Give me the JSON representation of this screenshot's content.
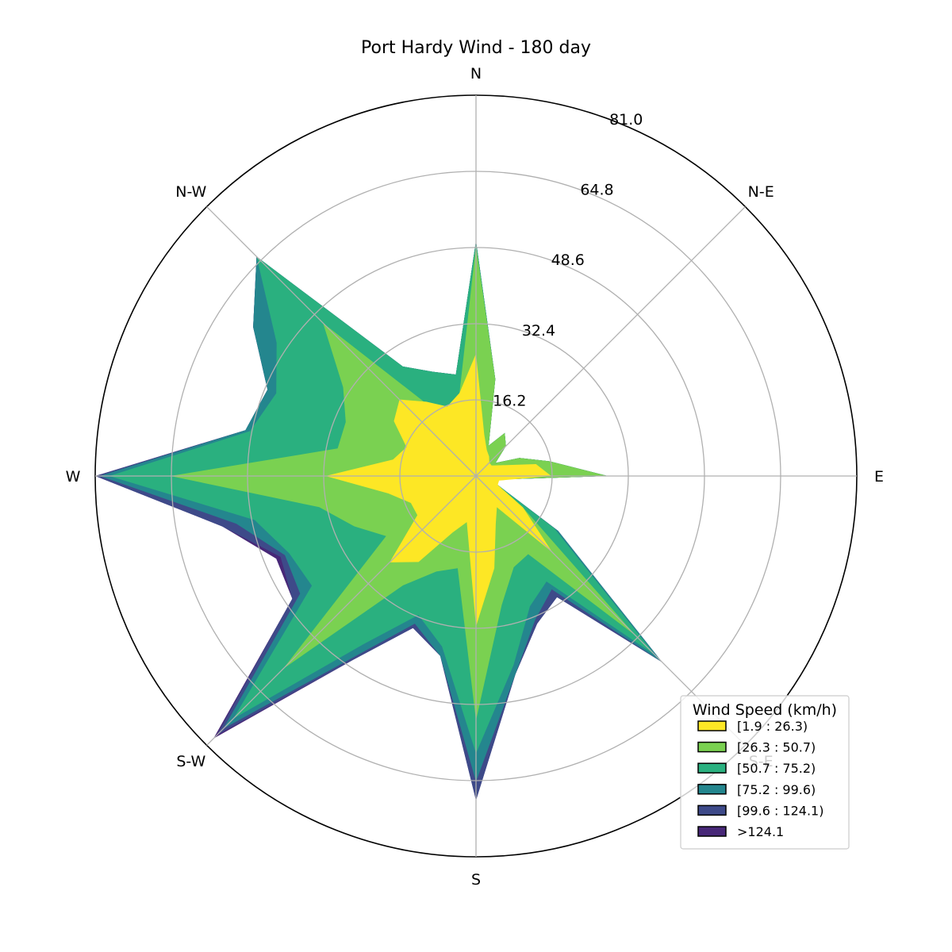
{
  "chart_data": {
    "type": "area",
    "subtype": "windrose",
    "title": "Port Hardy Wind - 180 day",
    "directions": [
      "E",
      "N-E",
      "N",
      "N-W",
      "W",
      "S-W",
      "S",
      "S-E"
    ],
    "radial_ticks": [
      "16.2",
      "32.4",
      "48.6",
      "64.8",
      "81.0"
    ],
    "radial_tick_values": [
      16.2,
      32.4,
      48.6,
      64.8,
      81.0
    ],
    "rmax": 81.0,
    "angles_deg": [
      0,
      11.25,
      22.5,
      33.75,
      45,
      56.25,
      67.5,
      78.75,
      90,
      101.25,
      112.5,
      123.75,
      135,
      146.25,
      157.5,
      168.75,
      180,
      191.25,
      202.5,
      213.75,
      225,
      236.25,
      247.5,
      258.75,
      270,
      281.25,
      292.5,
      303.75,
      315,
      326.25,
      337.5,
      348.75
    ],
    "legend": {
      "title": "Wind Speed (km/h)",
      "placement": "lower-right",
      "entries": [
        "[1.9 : 26.3)",
        "[26.3 : 50.7)",
        "[50.7 : 75.2)",
        "[75.2 : 99.6)",
        "[99.6 : 124.1)",
        ">124.1"
      ]
    },
    "series": [
      {
        "name": "[1.9 : 26.3)",
        "color": "#fde725",
        "values": [
          16,
          13,
          6,
          4,
          4,
          5,
          6,
          9,
          26,
          18,
          16,
          19,
          23,
          21,
          16,
          18,
          32,
          19,
          15,
          15,
          26,
          22,
          13,
          10,
          32,
          20,
          11,
          8,
          23,
          12,
          5,
          5
        ]
      },
      {
        "name": "[26.3 : 50.7)",
        "color": "#7ad151",
        "values": [
          28,
          16,
          10,
          5,
          9,
          11,
          7,
          21,
          49,
          18,
          12,
          18,
          46,
          34,
          30,
          30,
          65,
          34,
          28,
          23,
          58,
          28,
          22,
          20,
          52,
          28,
          21,
          20,
          48,
          12,
          5,
          4
        ]
      },
      {
        "name": "[50.7 : 75.2)",
        "color": "#2ab07f",
        "values": [
          28,
          16,
          10,
          5,
          9,
          11,
          7,
          21,
          50,
          22,
          24,
          28,
          66,
          51,
          46,
          49,
          78,
          48,
          43,
          42,
          73,
          43,
          32,
          37,
          59,
          41,
          30,
          27,
          54,
          20,
          5,
          4
        ]
      },
      {
        "name": "[75.2 : 99.6)",
        "color": "#24868e",
        "values": [
          28,
          16,
          10,
          5,
          9,
          11,
          7,
          21,
          50,
          22,
          24,
          28,
          66,
          57,
          48,
          50,
          80,
          52,
          44,
          45,
          76,
          46,
          34,
          39,
          65,
          43,
          33,
          29,
          56,
          21,
          5,
          4
        ]
      },
      {
        "name": "[99.6 : 124.1)",
        "color": "#3e4a89",
        "values": [
          28,
          16,
          10,
          5,
          9,
          11,
          7,
          21,
          50,
          22,
          24,
          28,
          66,
          57,
          48,
          50,
          81,
          55,
          45,
          47,
          78,
          47,
          35,
          39,
          69,
          43,
          34,
          31,
          56,
          21,
          5,
          4
        ]
      },
      {
        "name": ">124.1",
        "color": "#482878",
        "values": [
          28,
          16,
          10,
          5,
          9,
          11,
          7,
          21,
          50,
          22,
          24,
          28,
          66,
          57,
          48,
          50,
          81,
          55,
          46,
          47,
          79,
          47,
          35,
          39,
          69,
          43,
          34,
          31,
          56,
          21,
          5,
          4
        ]
      }
    ]
  }
}
